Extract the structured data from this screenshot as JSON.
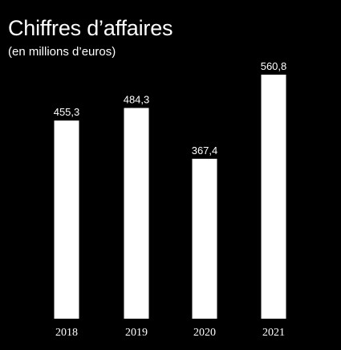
{
  "chart_data": {
    "type": "bar",
    "title": "Chiffres d’affaires",
    "subtitle": "(en millions d’euros)",
    "categories": [
      "2018",
      "2019",
      "2020",
      "2021"
    ],
    "values": [
      455.3,
      484.3,
      367.4,
      560.8
    ],
    "value_labels": [
      "455,3",
      "484,3",
      "367,4",
      "560,8"
    ],
    "xlabel": "",
    "ylabel": "",
    "ylim": [
      0,
      560.8
    ],
    "grid": false,
    "legend": "none",
    "bar_color": "#ffffff",
    "background_color": "#000000",
    "text_color": "#ffffff"
  }
}
